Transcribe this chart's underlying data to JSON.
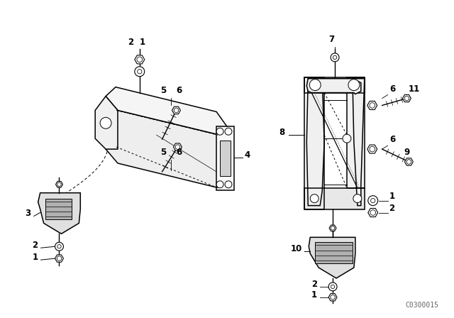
{
  "bg_color": "#ffffff",
  "line_color": "#000000",
  "fig_width": 6.4,
  "fig_height": 4.48,
  "dpi": 100,
  "watermark": "C0300015",
  "watermark_fontsize": 7
}
